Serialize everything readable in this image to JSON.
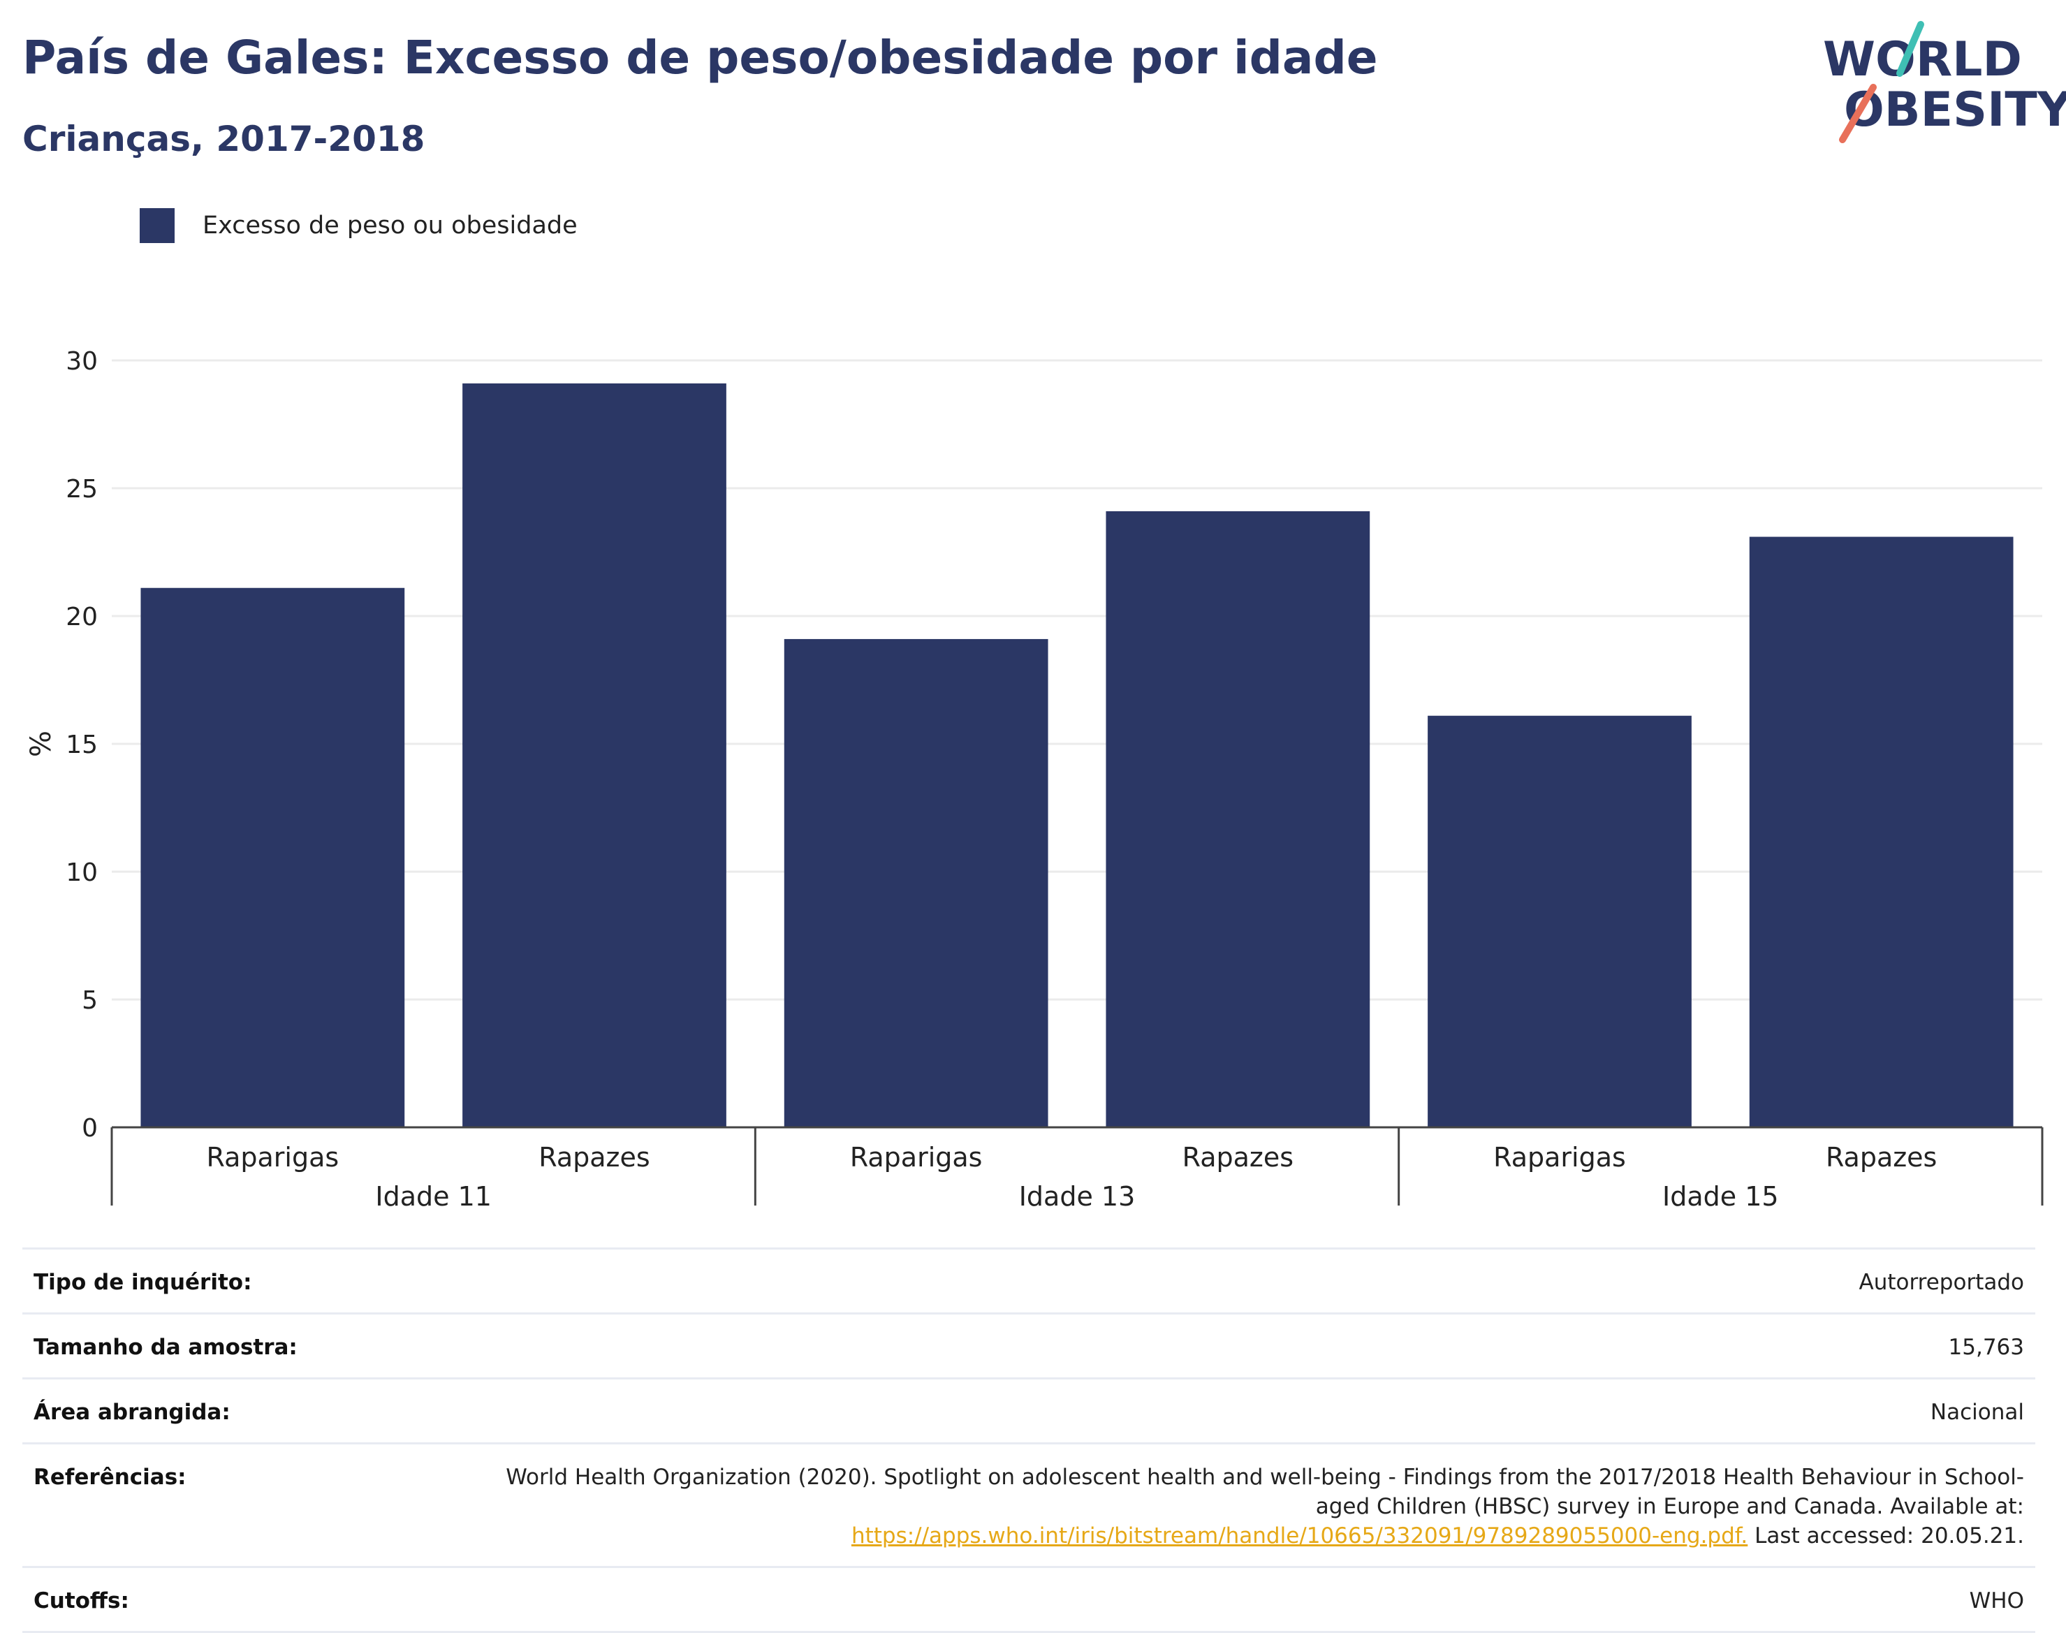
{
  "header": {
    "title": "País de Gales: Excesso de peso/obesidade por idade",
    "subtitle": "Crianças, 2017-2018"
  },
  "logo": {
    "line1": "WORLD",
    "line2": "OBESITY",
    "slash_colors": [
      "#3fbfb4",
      "#e8705a"
    ],
    "text_color": "#2b3765"
  },
  "legend": {
    "entries": [
      {
        "label": "Excesso de peso ou obesidade",
        "color": "#2b3765"
      }
    ]
  },
  "chart_data": {
    "type": "bar",
    "title": "País de Gales: Excesso de peso/obesidade por idade",
    "subtitle": "Crianças, 2017-2018",
    "ylabel": "%",
    "ylim": [
      0,
      30
    ],
    "yticks": [
      0,
      5,
      10,
      15,
      20,
      25,
      30
    ],
    "grid": true,
    "legend_position": "top-left",
    "groups": [
      {
        "label": "Idade 11",
        "categories": [
          "Raparigas",
          "Rapazes"
        ],
        "values": [
          21.1,
          29.1
        ]
      },
      {
        "label": "Idade 13",
        "categories": [
          "Raparigas",
          "Rapazes"
        ],
        "values": [
          19.1,
          24.1
        ]
      },
      {
        "label": "Idade 15",
        "categories": [
          "Raparigas",
          "Rapazes"
        ],
        "values": [
          16.1,
          23.1
        ]
      }
    ],
    "series": [
      {
        "name": "Excesso de peso ou obesidade",
        "color": "#2b3765"
      }
    ]
  },
  "info": {
    "survey_type": {
      "label": "Tipo de inquérito:",
      "value": "Autorreportado"
    },
    "sample_size": {
      "label": "Tamanho da amostra:",
      "value": "15,763"
    },
    "area": {
      "label": "Área abrangida:",
      "value": "Nacional"
    },
    "references": {
      "label": "Referências:",
      "text": "World Health Organization (2020). Spotlight on adolescent health and well-being - Findings from the 2017/2018 Health Behaviour in School-aged Children (HBSC) survey in Europe and Canada. Available at:",
      "link": "https://apps.who.int/iris/bitstream/handle/10665/332091/9789289055000-eng.pdf.",
      "suffix": "Last accessed: 20.05.21."
    },
    "cutoffs": {
      "label": "Cutoffs:",
      "value": "WHO"
    }
  }
}
